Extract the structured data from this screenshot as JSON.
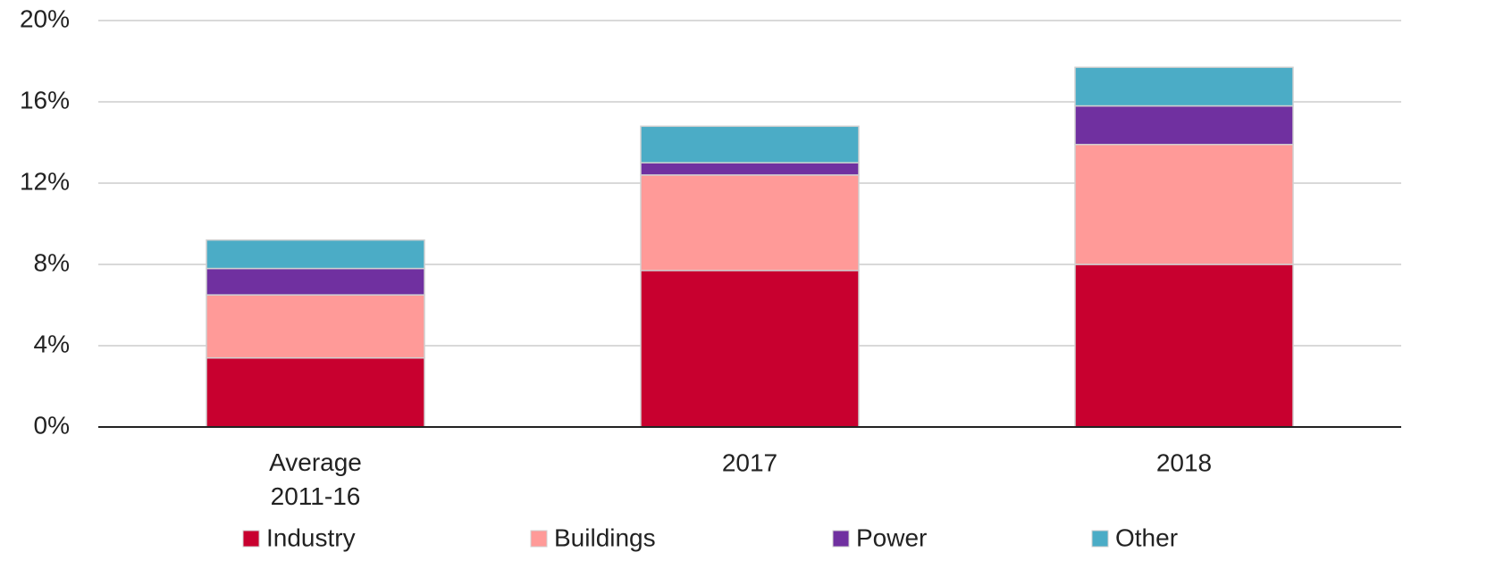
{
  "chart_data": {
    "type": "stacked_bar",
    "categories": [
      "Average 2011-16",
      "2017",
      "2018"
    ],
    "series": [
      {
        "name": "Industry",
        "color": "#c8002f",
        "values": [
          3.4,
          7.7,
          8.0
        ]
      },
      {
        "name": "Buildings",
        "color": "#ff9a98",
        "values": [
          3.1,
          4.7,
          5.9
        ]
      },
      {
        "name": "Power",
        "color": "#7030a0",
        "values": [
          1.3,
          0.6,
          1.9
        ]
      },
      {
        "name": "Other",
        "color": "#4bacc6",
        "values": [
          1.4,
          1.8,
          1.9
        ]
      }
    ],
    "ylim": [
      0,
      20
    ],
    "yticks": [
      {
        "value": 0,
        "label": "0%"
      },
      {
        "value": 4,
        "label": "4%"
      },
      {
        "value": 8,
        "label": "8%"
      },
      {
        "value": 12,
        "label": "12%"
      },
      {
        "value": 16,
        "label": "16%"
      },
      {
        "value": 20,
        "label": "20%"
      }
    ],
    "grid": true,
    "legend": "bottom"
  }
}
